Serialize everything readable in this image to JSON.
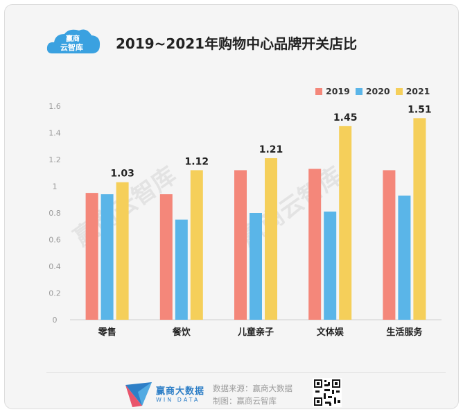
{
  "header": {
    "logo_line1": "赢商",
    "logo_line2": "云智库",
    "title": "2019~2021年购物中心品牌开关店比"
  },
  "watermark": "赢商云智库",
  "chart_data": {
    "type": "bar",
    "title": "2019~2021年购物中心品牌开关店比",
    "categories": [
      "零售",
      "餐饮",
      "儿童亲子",
      "文体娱",
      "生活服务"
    ],
    "series": [
      {
        "name": "2019",
        "color": "#f4877a",
        "values": [
          0.95,
          0.94,
          1.12,
          1.13,
          1.12
        ]
      },
      {
        "name": "2020",
        "color": "#5ab5e8",
        "values": [
          0.94,
          0.75,
          0.8,
          0.81,
          0.93
        ]
      },
      {
        "name": "2021",
        "color": "#f5cf5a",
        "values": [
          1.03,
          1.12,
          1.21,
          1.45,
          1.51
        ]
      }
    ],
    "data_labels": [
      "1.03",
      "1.12",
      "1.21",
      "1.45",
      "1.51"
    ],
    "y_ticks": [
      "0",
      "0.2",
      "0.4",
      "0.6",
      "0.8",
      "1",
      "1.2",
      "1.4",
      "1.6"
    ],
    "ylim": [
      0,
      1.6
    ],
    "legend_position": "top-right",
    "grid": false
  },
  "footer": {
    "brand_name": "赢商大数据",
    "brand_sub": "WIN DATA",
    "source_line": "数据来源：赢商大数据",
    "maker_line": "制图：赢商云智库"
  }
}
